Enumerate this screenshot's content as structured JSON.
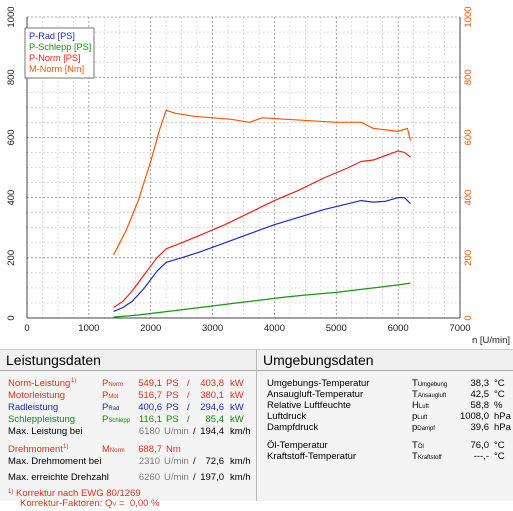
{
  "chart_data": {
    "type": "line",
    "xlabel": "n [U/min]",
    "xlim": [
      0,
      7000
    ],
    "ylim_left": [
      0,
      1000
    ],
    "ylim_right": [
      0,
      1000
    ],
    "xticks": [
      "0",
      "1000",
      "2000",
      "3000",
      "4000",
      "5000",
      "6000",
      "7000"
    ],
    "yticks_left": [
      "0",
      "200",
      "400",
      "600",
      "800",
      "1000"
    ],
    "yticks_right": [
      "0",
      "200",
      "400",
      "600",
      "800",
      "1000"
    ],
    "grid": true,
    "legend_position": "top-left",
    "series": [
      {
        "name": "P-Rad [PS]",
        "color": "#1a2acc",
        "x": [
          1400,
          1550,
          1700,
          1900,
          2100,
          2250,
          2500,
          2800,
          3200,
          3600,
          4000,
          4400,
          4800,
          5200,
          5400,
          5600,
          5800,
          6000,
          6100,
          6200
        ],
        "y": [
          22,
          35,
          55,
          100,
          155,
          185,
          200,
          220,
          250,
          280,
          310,
          335,
          360,
          380,
          390,
          385,
          388,
          400,
          400,
          380
        ]
      },
      {
        "name": "P-Schlepp [PS]",
        "color": "#119911",
        "x": [
          1400,
          1800,
          2200,
          2600,
          3000,
          3400,
          3800,
          4200,
          4600,
          5000,
          5400,
          5800,
          6000,
          6200
        ],
        "y": [
          3,
          10,
          20,
          30,
          40,
          50,
          60,
          70,
          78,
          85,
          95,
          105,
          110,
          116
        ]
      },
      {
        "name": "P-Norm [PS]",
        "color": "#ee2211",
        "x": [
          1400,
          1550,
          1700,
          1900,
          2100,
          2250,
          2500,
          2800,
          3200,
          3600,
          4000,
          4400,
          4800,
          5200,
          5400,
          5600,
          5800,
          6000,
          6100,
          6200
        ],
        "y": [
          35,
          55,
          90,
          145,
          200,
          230,
          250,
          275,
          310,
          350,
          390,
          425,
          465,
          500,
          520,
          525,
          540,
          555,
          550,
          535
        ]
      },
      {
        "name": "M-Norm [Nm]",
        "color": "#ff5500",
        "x": [
          1400,
          1600,
          1800,
          2000,
          2150,
          2250,
          2400,
          2700,
          3000,
          3300,
          3600,
          3800,
          4200,
          4600,
          5000,
          5400,
          5600,
          5800,
          6000,
          6150,
          6200
        ],
        "y": [
          210,
          290,
          390,
          520,
          630,
          690,
          680,
          670,
          665,
          660,
          650,
          665,
          660,
          655,
          650,
          650,
          630,
          625,
          620,
          630,
          590
        ]
      }
    ]
  },
  "left_panel": {
    "title": "Leistungsdaten",
    "rows": [
      {
        "label": "Norm-Leistung",
        "mark": "1)",
        "sym": "P",
        "sub": "Norm",
        "v1": "549,1",
        "u1": "PS",
        "v2": "403,8",
        "u2": "kW"
      },
      {
        "label": "Motorleistung",
        "sym": "P",
        "sub": "Mot",
        "v1": "516,7",
        "u1": "PS",
        "v2": "380,1",
        "u2": "kW"
      },
      {
        "label": "Radleistung",
        "sym": "P",
        "sub": "Rad",
        "v1": "400,6",
        "u1": "PS",
        "v2": "294,6",
        "u2": "kW"
      },
      {
        "label": "Schleppleistung",
        "sym": "P",
        "sub": "Schlepp",
        "v1": "116,1",
        "u1": "PS",
        "v2": "85,4",
        "u2": "kW"
      }
    ],
    "max_power_label": "Max. Leistung bei",
    "max_power_rpm": "6180",
    "max_power_speed": "194,4",
    "torque_label": "Drehmoment",
    "torque_mark": "1)",
    "torque_sym": "M",
    "torque_sub": "Norm",
    "torque_value": "688,7",
    "torque_unit": "Nm",
    "max_torque_label": "Max. Drehmoment bei",
    "max_torque_rpm": "2310",
    "max_torque_speed": "72,6",
    "max_rpm_label": "Max. erreichte Drehzahl",
    "max_rpm": "6260",
    "max_rpm_speed": "197,0",
    "rpm_unit": "U/min",
    "slash": "/",
    "speed_unit": "km/h",
    "footnote_mark": "1)",
    "footnote1": "Korrektur nach EWG 80/1269",
    "footnote2": "Korrektur-Faktoren: Q",
    "footnote2_sub": "V",
    "footnote2_eq": "=",
    "footnote2_val": "0,00 %"
  },
  "right_panel": {
    "title": "Umgebungsdaten",
    "rows": [
      {
        "label": "Umgebungs-Temperatur",
        "sym": "T",
        "sub": "Umgebung",
        "value": "38,3",
        "unit": "°C"
      },
      {
        "label": "Ansaugluft-Temperatur",
        "sym": "T",
        "sub": "Ansaugluft",
        "value": "42,5",
        "unit": "°C"
      },
      {
        "label": "Relative Luftfeuchte",
        "sym": "H",
        "sub": "Luft",
        "value": "58,8",
        "unit": "%"
      },
      {
        "label": "Luftdruck",
        "sym": "p",
        "sub": "Luft",
        "value": "1008,0",
        "unit": "hPa"
      },
      {
        "label": "Dampfdruck",
        "sym": "p",
        "sub": "Dampf",
        "value": "39,6",
        "unit": "hPa"
      },
      {
        "label": "Öl-Temperatur",
        "sym": "T",
        "sub": "Öl",
        "value": "76,0",
        "unit": "°C"
      },
      {
        "label": "Kraftstoff-Temperatur",
        "sym": "T",
        "sub": "Kraftstoff",
        "value": "---,-",
        "unit": "°C"
      }
    ]
  }
}
